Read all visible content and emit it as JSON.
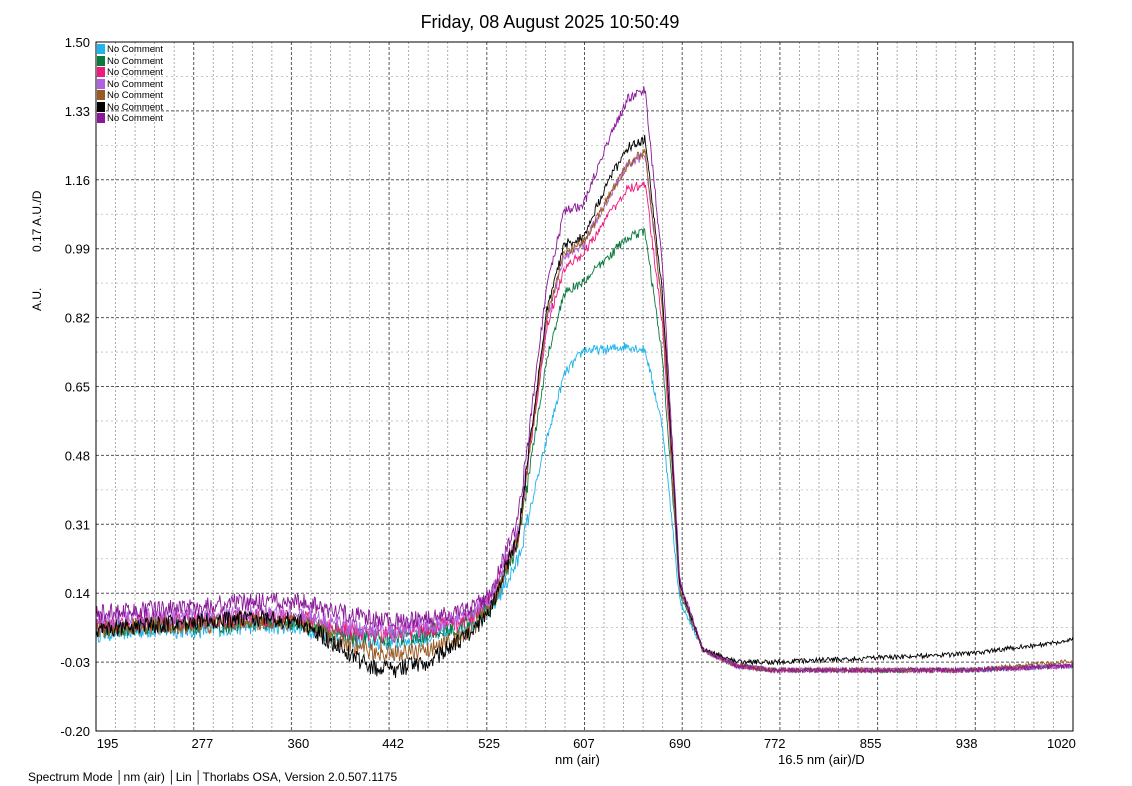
{
  "title": "Friday, 08 August 2025 10:50:49",
  "status_bar": "Spectrum Mode │nm (air) │Lin │Thorlabs OSA, Version 2.0.507.1175",
  "chart_data": {
    "type": "line",
    "title": "Friday, 08 August 2025 10:50:49",
    "xlabel": "nm (air)",
    "x_division": "16.5 nm (air)/D",
    "ylabel": "A.U.",
    "y_division": "0.17 A.U./D",
    "xlim": [
      185,
      1030
    ],
    "ylim": [
      -0.2,
      1.5
    ],
    "x_ticks": [
      "195",
      "277",
      "360",
      "442",
      "525",
      "607",
      "690",
      "772",
      "855",
      "938",
      "1020"
    ],
    "y_ticks": [
      "1.50",
      "1.33",
      "1.16",
      "0.99",
      "0.82",
      "0.65",
      "0.48",
      "0.31",
      "0.14",
      "-0.03",
      "-0.20"
    ],
    "grid": true,
    "legend_position": "top-left",
    "series": [
      {
        "name": "No Comment",
        "color": "#1fb4ea",
        "x": [
          185,
          230,
          277,
          320,
          360,
          400,
          420,
          442,
          470,
          500,
          525,
          550,
          575,
          590,
          607,
          625,
          645,
          660,
          675,
          690,
          710,
          740,
          772,
          855,
          938,
          1020,
          1030
        ],
        "y": [
          0.04,
          0.05,
          0.05,
          0.06,
          0.06,
          0.03,
          0.02,
          0.02,
          0.03,
          0.05,
          0.09,
          0.22,
          0.52,
          0.68,
          0.74,
          0.74,
          0.75,
          0.74,
          0.55,
          0.12,
          0.0,
          -0.04,
          -0.05,
          -0.05,
          -0.05,
          -0.04,
          -0.04
        ]
      },
      {
        "name": "No Comment",
        "color": "#0a7a3c",
        "x": [
          185,
          230,
          277,
          320,
          360,
          400,
          420,
          442,
          470,
          500,
          525,
          550,
          575,
          590,
          607,
          625,
          645,
          660,
          675,
          690,
          710,
          740,
          772,
          855,
          938,
          1020,
          1030
        ],
        "y": [
          0.05,
          0.06,
          0.06,
          0.07,
          0.07,
          0.04,
          0.03,
          0.03,
          0.04,
          0.06,
          0.1,
          0.26,
          0.72,
          0.88,
          0.91,
          0.96,
          1.02,
          1.03,
          0.72,
          0.14,
          0.0,
          -0.04,
          -0.05,
          -0.05,
          -0.05,
          -0.04,
          -0.04
        ]
      },
      {
        "name": "No Comment",
        "color": "#f0197d",
        "x": [
          185,
          230,
          277,
          320,
          360,
          400,
          420,
          442,
          470,
          500,
          525,
          550,
          575,
          590,
          607,
          625,
          645,
          660,
          675,
          690,
          710,
          740,
          772,
          855,
          938,
          1020,
          1030
        ],
        "y": [
          0.06,
          0.07,
          0.07,
          0.08,
          0.08,
          0.05,
          0.04,
          0.04,
          0.05,
          0.07,
          0.11,
          0.28,
          0.8,
          0.94,
          0.98,
          1.06,
          1.14,
          1.15,
          0.8,
          0.15,
          0.0,
          -0.04,
          -0.05,
          -0.05,
          -0.05,
          -0.04,
          -0.04
        ]
      },
      {
        "name": "No Comment",
        "color": "#b061e0",
        "x": [
          185,
          230,
          277,
          320,
          360,
          400,
          420,
          442,
          470,
          500,
          525,
          550,
          575,
          590,
          607,
          625,
          645,
          660,
          675,
          690,
          710,
          740,
          772,
          855,
          938,
          1020,
          1030
        ],
        "y": [
          0.07,
          0.08,
          0.08,
          0.09,
          0.09,
          0.06,
          0.05,
          0.05,
          0.06,
          0.08,
          0.12,
          0.29,
          0.82,
          0.97,
          1.0,
          1.1,
          1.2,
          1.22,
          0.84,
          0.16,
          0.0,
          -0.04,
          -0.05,
          -0.05,
          -0.05,
          -0.04,
          -0.04
        ]
      },
      {
        "name": "No Comment",
        "color": "#9a5a24",
        "x": [
          185,
          230,
          277,
          320,
          360,
          400,
          420,
          442,
          470,
          500,
          525,
          550,
          575,
          590,
          607,
          625,
          645,
          660,
          675,
          690,
          710,
          740,
          772,
          855,
          938,
          1020,
          1030
        ],
        "y": [
          0.05,
          0.06,
          0.06,
          0.07,
          0.07,
          0.02,
          0.0,
          -0.01,
          0.0,
          0.03,
          0.09,
          0.27,
          0.82,
          0.98,
          1.01,
          1.1,
          1.2,
          1.23,
          0.84,
          0.15,
          0.0,
          -0.04,
          -0.05,
          -0.05,
          -0.05,
          -0.03,
          -0.03
        ]
      },
      {
        "name": "No Comment",
        "color": "#000000",
        "x": [
          185,
          230,
          277,
          320,
          360,
          400,
          420,
          442,
          470,
          500,
          525,
          550,
          575,
          590,
          607,
          625,
          645,
          660,
          675,
          690,
          710,
          740,
          772,
          855,
          938,
          1020,
          1030
        ],
        "y": [
          0.05,
          0.06,
          0.07,
          0.08,
          0.07,
          0.0,
          -0.04,
          -0.05,
          -0.03,
          0.02,
          0.09,
          0.28,
          0.84,
          1.0,
          1.02,
          1.14,
          1.24,
          1.26,
          0.88,
          0.16,
          0.0,
          -0.03,
          -0.03,
          -0.02,
          -0.01,
          0.02,
          0.03
        ]
      },
      {
        "name": "No Comment",
        "color": "#8a1898",
        "x": [
          185,
          230,
          277,
          320,
          360,
          400,
          420,
          442,
          470,
          500,
          525,
          550,
          575,
          590,
          607,
          625,
          645,
          660,
          675,
          690,
          710,
          740,
          772,
          855,
          938,
          1020,
          1030
        ],
        "y": [
          0.09,
          0.1,
          0.11,
          0.12,
          0.12,
          0.09,
          0.08,
          0.07,
          0.08,
          0.09,
          0.13,
          0.32,
          0.9,
          1.08,
          1.1,
          1.24,
          1.36,
          1.38,
          0.94,
          0.17,
          0.0,
          -0.04,
          -0.05,
          -0.05,
          -0.05,
          -0.04,
          -0.04
        ]
      }
    ]
  }
}
